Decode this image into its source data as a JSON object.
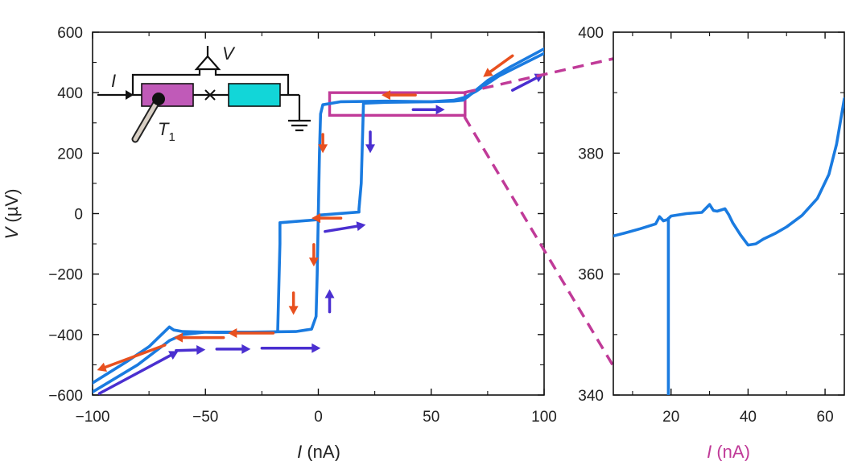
{
  "chart_data": [
    {
      "type": "line",
      "xlabel_var": "I",
      "xlabel_unit": "(nA)",
      "ylabel_var": "V",
      "ylabel_unit": "(µV)",
      "xlim": [
        -100,
        100
      ],
      "ylim": [
        -600,
        600
      ],
      "xticks": [
        -100,
        -50,
        0,
        50,
        100
      ],
      "yticks": [
        -600,
        -400,
        -200,
        0,
        200,
        400,
        600
      ],
      "xtick_labels": [
        "−100",
        "−50",
        "0",
        "50",
        "100"
      ],
      "ytick_labels": [
        "−600",
        "−400",
        "−200",
        "0",
        "200",
        "400",
        "600"
      ],
      "series": [
        {
          "sweep": "down",
          "color": "#1a7be0",
          "x": [
            100,
            80,
            70,
            65,
            60,
            50,
            30,
            10,
            2,
            1,
            0.5,
            0,
            0,
            -17,
            -17,
            -18,
            -20,
            -30,
            -45,
            -60,
            -64,
            -66,
            -75,
            -85,
            -100
          ],
          "y": [
            530,
            455,
            405,
            385,
            375,
            370,
            372,
            370,
            360,
            330,
            200,
            0,
            -20,
            -30,
            -100,
            -390,
            -392,
            -393,
            -393,
            -390,
            -385,
            -375,
            -440,
            -490,
            -560
          ]
        },
        {
          "sweep": "up",
          "color": "#1a7be0",
          "x": [
            -100,
            -80,
            -66,
            -60,
            -50,
            -30,
            -10,
            -3,
            -1,
            -0.5,
            0,
            0,
            18,
            18,
            19,
            20,
            30,
            50,
            60,
            64,
            66,
            75,
            85,
            100
          ],
          "y": [
            -590,
            -500,
            -420,
            -400,
            -392,
            -392,
            -390,
            -382,
            -340,
            -200,
            0,
            -5,
            5,
            15,
            100,
            365,
            368,
            370,
            372,
            375,
            385,
            440,
            485,
            545
          ]
        }
      ],
      "arrows": {
        "down_sweep_color": "#e8501f",
        "up_sweep_color": "#4a2fd0"
      },
      "highlight_box": {
        "x": [
          5,
          65
        ],
        "y": [
          325,
          400
        ],
        "color": "#c03a98"
      },
      "inset": {
        "current_label": "I",
        "voltage_label": "V",
        "thermometer_label": "T",
        "thermometer_subscript": "1",
        "left_block_color": "#c05ab8",
        "right_block_color": "#12d6d8"
      }
    },
    {
      "type": "line",
      "xlabel_var": "I",
      "xlabel_unit": "(nA)",
      "xlim": [
        5,
        65
      ],
      "ylim": [
        340,
        400
      ],
      "xticks": [
        20,
        40,
        60
      ],
      "yticks": [
        340,
        360,
        380,
        400
      ],
      "xtick_labels": [
        "20",
        "40",
        "60"
      ],
      "ytick_labels": [
        "340",
        "360",
        "380",
        "400"
      ],
      "label_color": "#c03a98",
      "series": [
        {
          "color": "#1a7be0",
          "x": [
            5,
            8,
            12,
            16,
            17,
            18,
            19,
            20,
            24,
            28,
            30,
            31,
            32,
            34,
            35,
            36,
            38,
            40,
            42,
            44,
            47,
            50,
            54,
            58,
            61,
            63,
            65
          ],
          "y": [
            366.3,
            366.8,
            367.5,
            368.3,
            369.5,
            368.8,
            369,
            369.6,
            370,
            370.2,
            371.5,
            370.5,
            370.4,
            370.8,
            369.8,
            368.5,
            366.5,
            364.8,
            365,
            365.8,
            366.7,
            367.8,
            369.7,
            372.5,
            376.5,
            381.5,
            389
          ]
        },
        {
          "color": "#1a7be0",
          "x": [
            19.3,
            19.3
          ],
          "y": [
            369.2,
            340
          ]
        }
      ]
    }
  ]
}
